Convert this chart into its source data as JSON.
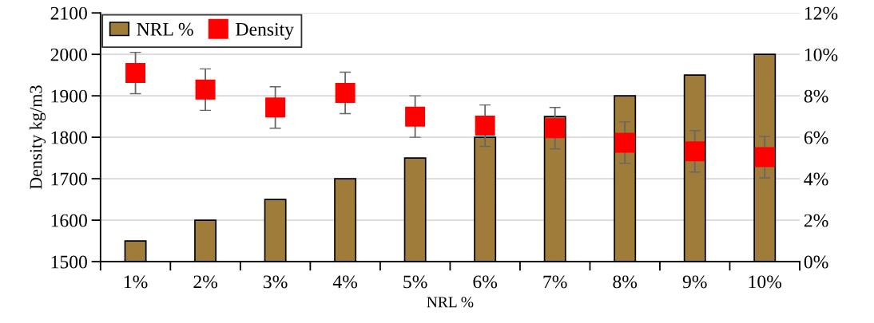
{
  "chart_data": {
    "type": "bar",
    "xlabel": "NRL %",
    "ylabel": "Density kg/m3",
    "categories": [
      "1%",
      "2%",
      "3%",
      "4%",
      "5%",
      "6%",
      "7%",
      "8%",
      "9%",
      "10%"
    ],
    "series": [
      {
        "name": "NRL %",
        "axis": "y2",
        "color": "#a07c3a",
        "values": [
          1,
          2,
          3,
          4,
          5,
          6,
          7,
          8,
          9,
          10
        ]
      },
      {
        "name": "Density",
        "type": "scatter",
        "axis": "y",
        "color": "#ff0000",
        "marker": "square",
        "values": [
          1955,
          1915,
          1872,
          1907,
          1850,
          1828,
          1822,
          1787,
          1766,
          1752
        ],
        "errors": [
          50,
          50,
          50,
          50,
          50,
          50,
          50,
          50,
          50,
          50
        ]
      }
    ],
    "ylim": [
      1500,
      2100
    ],
    "yticks": [
      1500,
      1600,
      1700,
      1800,
      1900,
      2000,
      2100
    ],
    "y2lim": [
      0,
      12
    ],
    "y2ticks": [
      {
        "value": 0,
        "label": "0%"
      },
      {
        "value": 2,
        "label": "2%"
      },
      {
        "value": 4,
        "label": "4%"
      },
      {
        "value": 6,
        "label": "6%"
      },
      {
        "value": 8,
        "label": "8%"
      },
      {
        "value": 10,
        "label": "10%"
      },
      {
        "value": 12,
        "label": "12%"
      }
    ],
    "grid": "y",
    "legend": "top left"
  }
}
